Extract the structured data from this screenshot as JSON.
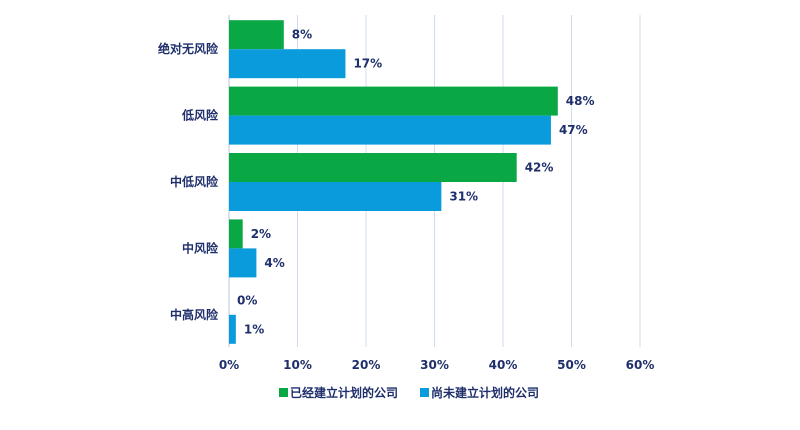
{
  "chart_data": {
    "type": "bar",
    "orientation": "horizontal",
    "categories": [
      "绝对无风险",
      "低风险",
      "中低风险",
      "中风险",
      "中高风险"
    ],
    "series": [
      {
        "name": "已经建立计划的公司",
        "color": "#0aa845",
        "values": [
          8,
          48,
          42,
          2,
          0
        ],
        "labels": [
          "8%",
          "48%",
          "42%",
          "2%",
          "0%"
        ]
      },
      {
        "name": "尚未建立计划的公司",
        "color": "#0a9bdc",
        "values": [
          17,
          47,
          31,
          4,
          1
        ],
        "labels": [
          "17%",
          "47%",
          "31%",
          "4%",
          "1%"
        ]
      }
    ],
    "xlim": [
      0,
      60
    ],
    "xticks": [
      0,
      10,
      20,
      30,
      40,
      50,
      60
    ],
    "xtick_labels": [
      "0%",
      "10%",
      "20%",
      "30%",
      "40%",
      "50%",
      "60%"
    ],
    "grid": "vertical",
    "legend_position": "bottom"
  }
}
